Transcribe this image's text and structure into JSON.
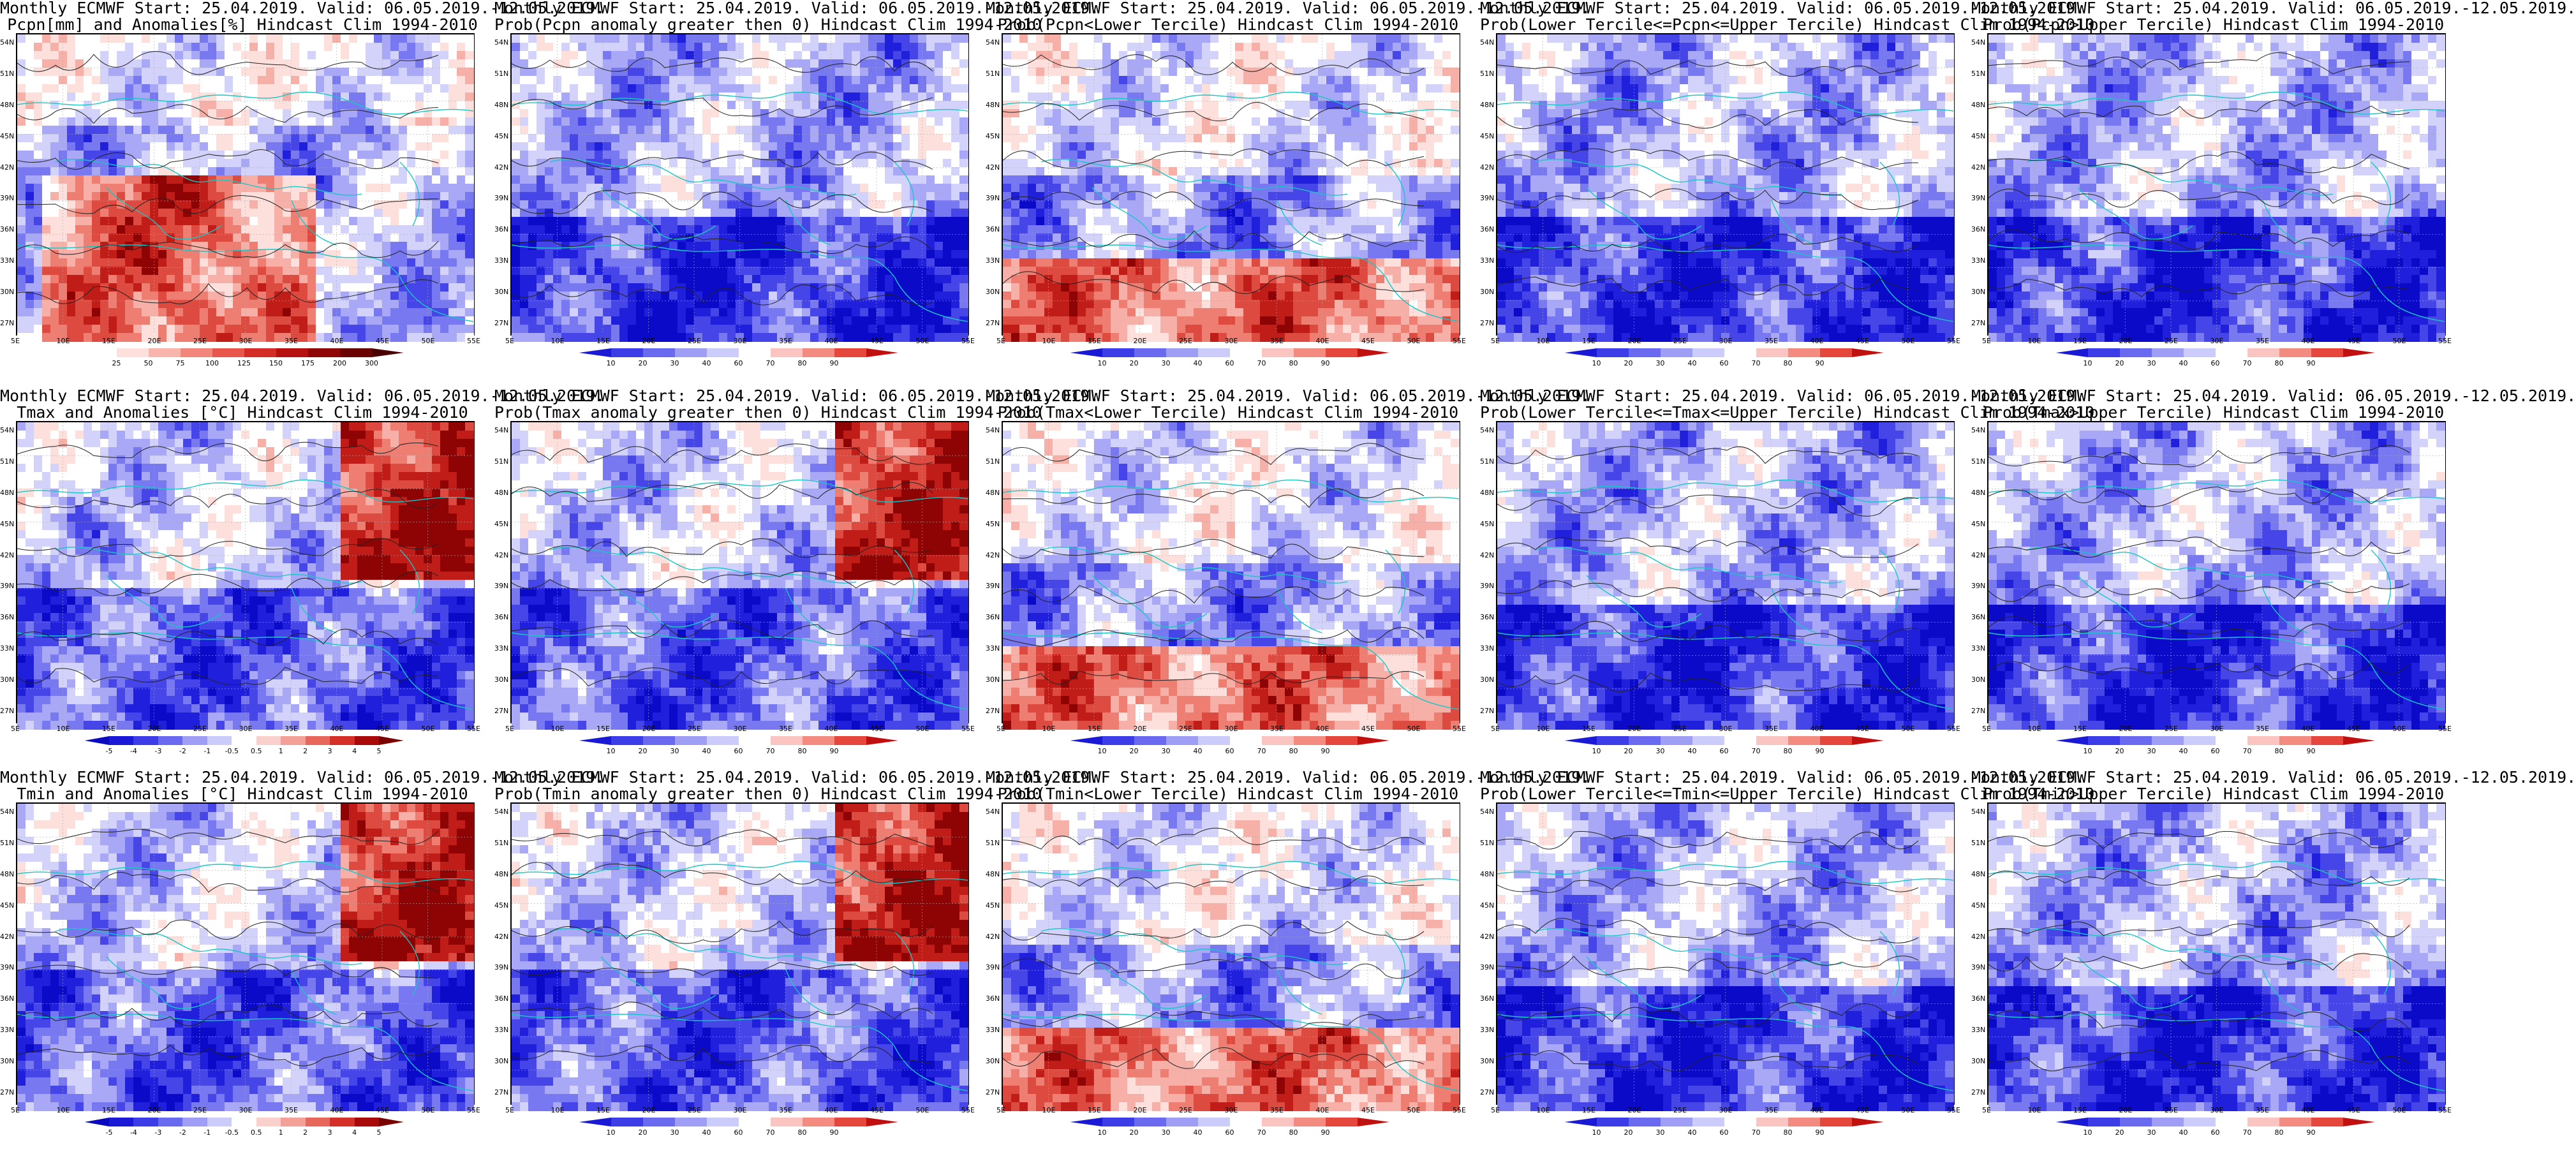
{
  "figure": {
    "panels": [
      {
        "id": "p1",
        "title1": "Monthly ECMWF Start: 25.04.2019. Valid: 06.05.2019.-12.05.2019.",
        "title2": "Pcpn[mm] and Anomalies[%] Hindcast Clim 1994-2010",
        "scheme": "anomaly-pcpn",
        "cb": "pcpn"
      },
      {
        "id": "p2",
        "title1": "Monthly ECMWF Start: 25.04.2019. Valid: 06.05.2019.-12.05.2019.",
        "title2": "Prob(Pcpn anomaly greater then 0) Hindcast Clim 1994-2010",
        "scheme": "prob-cool",
        "cb": "prob"
      },
      {
        "id": "p3",
        "title1": "Monthly ECMWF Start: 25.04.2019. Valid: 06.05.2019.-12.05.2019.",
        "title2": "Prob(Pcpn<Lower Tercile) Hindcast Clim 1994-2010",
        "scheme": "prob-warm-south",
        "cb": "prob"
      },
      {
        "id": "p4",
        "title1": "Monthly ECMWF Start: 25.04.2019. Valid: 06.05.2019.-12.05.2019.",
        "title2": "Prob(Lower Tercile<=Pcpn<=Upper Tercile) Hindcast Clim 1994-2010",
        "scheme": "prob-cool",
        "cb": "prob"
      },
      {
        "id": "p5",
        "title1": "Monthly ECMWF Start: 25.04.2019. Valid: 06.05.2019.-12.05.2019.",
        "title2": "Prob(Pcpn>Upper Tercile) Hindcast Clim 1994-2010",
        "scheme": "prob-cool",
        "cb": "prob"
      },
      {
        "id": "p6",
        "title1": "Monthly ECMWF Start: 25.04.2019. Valid: 06.05.2019.-12.05.2019.",
        "title2": "Tmax and Anomalies [°C] Hindcast Clim 1994-2010",
        "scheme": "anomaly-temp",
        "cb": "temp"
      },
      {
        "id": "p7",
        "title1": "Monthly ECMWF Start: 25.04.2019. Valid: 06.05.2019.-12.05.2019.",
        "title2": "Prob(Tmax anomaly greater then 0) Hindcast Clim 1994-2010",
        "scheme": "anomaly-temp",
        "cb": "prob"
      },
      {
        "id": "p8",
        "title1": "Monthly ECMWF Start: 25.04.2019. Valid: 06.05.2019.-12.05.2019.",
        "title2": "Prob(Tmax<Lower Tercile) Hindcast Clim 1994-2010",
        "scheme": "prob-warm-south",
        "cb": "prob"
      },
      {
        "id": "p9",
        "title1": "Monthly ECMWF Start: 25.04.2019. Valid: 06.05.2019.-12.05.2019.",
        "title2": "Prob(Lower Tercile<=Tmax<=Upper Tercile) Hindcast Clim 1994-2010",
        "scheme": "prob-cool",
        "cb": "prob"
      },
      {
        "id": "p10",
        "title1": "Monthly ECMWF Start: 25.04.2019. Valid: 06.05.2019.-12.05.2019.",
        "title2": "Prob(Tmax>Upper Tercile) Hindcast Clim 1994-2010",
        "scheme": "prob-cool",
        "cb": "prob"
      },
      {
        "id": "p11",
        "title1": "Monthly ECMWF Start: 25.04.2019. Valid: 06.05.2019.-12.05.2019.",
        "title2": "Tmin and Anomalies [°C] Hindcast Clim 1994-2010",
        "scheme": "anomaly-temp",
        "cb": "temp"
      },
      {
        "id": "p12",
        "title1": "Monthly ECMWF Start: 25.04.2019. Valid: 06.05.2019.-12.05.2019.",
        "title2": "Prob(Tmin anomaly greater then 0) Hindcast Clim 1994-2010",
        "scheme": "anomaly-temp",
        "cb": "prob"
      },
      {
        "id": "p13",
        "title1": "Monthly ECMWF Start: 25.04.2019. Valid: 06.05.2019.-12.05.2019.",
        "title2": "Prob(Tmin<Lower Tercile) Hindcast Clim 1994-2010",
        "scheme": "prob-warm-south",
        "cb": "prob"
      },
      {
        "id": "p14",
        "title1": "Monthly ECMWF Start: 25.04.2019. Valid: 06.05.2019.-12.05.2019.",
        "title2": "Prob(Lower Tercile<=Tmin<=Upper Tercile) Hindcast Clim 1994-2010",
        "scheme": "prob-cool",
        "cb": "prob"
      },
      {
        "id": "p15",
        "title1": "Monthly ECMWF Start: 25.04.2019. Valid: 06.05.2019.-12.05.2019.",
        "title2": "Prob(Tmin>Upper Tercile) Hindcast Clim 1994-2010",
        "scheme": "prob-cool",
        "cb": "prob"
      }
    ],
    "lat_labels": [
      "54N",
      "51N",
      "48N",
      "45N",
      "42N",
      "39N",
      "36N",
      "33N",
      "30N",
      "27N"
    ],
    "lon_labels": [
      "5E",
      "10E",
      "15E",
      "20E",
      "25E",
      "30E",
      "35E",
      "40E",
      "45E",
      "50E",
      "55E"
    ],
    "colorbars": {
      "pcpn": {
        "ticks": [
          "25",
          "50",
          "75",
          "100",
          "125",
          "150",
          "175",
          "200",
          "300"
        ],
        "colors": [
          "#ffffff",
          "#fde0dc",
          "#f9b4ac",
          "#f3867a",
          "#e8564c",
          "#d42c26",
          "#b5110f",
          "#8f0606",
          "#6a0000",
          "#4a0000"
        ]
      },
      "prob": {
        "ticks": [
          "10",
          "20",
          "30",
          "40",
          "60",
          "70",
          "80",
          "90"
        ],
        "colors": [
          "#1a1ad6",
          "#3d3de8",
          "#6a6af0",
          "#9e9ef5",
          "#ccccfa",
          "#ffffff",
          "#fac4c0",
          "#f38b80",
          "#e6473c",
          "#c01010"
        ]
      },
      "temp": {
        "ticks": [
          "-5",
          "-4",
          "-3",
          "-2",
          "-1",
          "-0.5",
          "0.5",
          "1",
          "2",
          "3",
          "4",
          "5"
        ],
        "colors": [
          "#0a0abf",
          "#1a1ad6",
          "#3d3de8",
          "#6a6af0",
          "#9e9ef5",
          "#ccccfa",
          "#ffffff",
          "#fad0cc",
          "#f3a198",
          "#e8675c",
          "#d43028",
          "#a80a0a",
          "#7a0000"
        ]
      }
    }
  }
}
